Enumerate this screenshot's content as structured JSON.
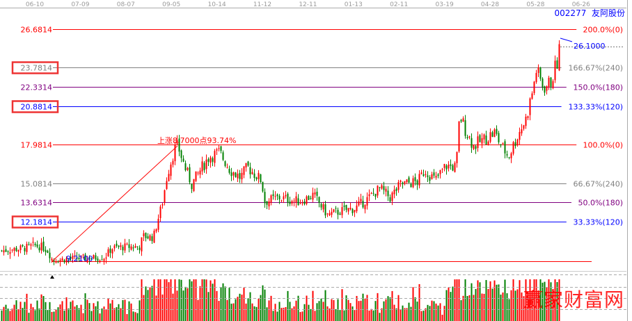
{
  "stock": {
    "code": "002277",
    "name": "友阿股份"
  },
  "watermark": "赢家财富网",
  "colors": {
    "up": "#ff0000",
    "down": "#008000",
    "axis": "#aaaaaa",
    "gray_level": "#808080",
    "purple_level": "#800080",
    "blue_level": "#0000ff",
    "red_level": "#ff0000",
    "highlight_box": "#ee3333"
  },
  "chart_data": {
    "type": "candlestick",
    "x_ticks": [
      "06-10",
      "07-09",
      "08-07",
      "09-05",
      "10-14",
      "11-12",
      "12-11",
      "01-13",
      "02-11",
      "03-19",
      "04-28",
      "05-28",
      "06-26"
    ],
    "ylim": [
      9.21,
      26.6814
    ],
    "levels": [
      {
        "price": "26.6814",
        "label": "200.0%(0)",
        "color": "red"
      },
      {
        "price": "23.7814",
        "label": "166.67%(240)",
        "color": "gray",
        "boxed": true
      },
      {
        "price": "22.3314",
        "label": "150.0%(180)",
        "color": "purple"
      },
      {
        "price": "20.8814",
        "label": "133.33%(120)",
        "color": "blue",
        "boxed": true
      },
      {
        "price": "17.9814",
        "label": "100.0%(0)",
        "color": "red"
      },
      {
        "price": "15.0814",
        "label": "66.67%(240)",
        "color": "gray"
      },
      {
        "price": "13.6314",
        "label": "50.0%(180)",
        "color": "purple"
      },
      {
        "price": "12.1814",
        "label": "33.33%(120)",
        "color": "blue",
        "boxed": true
      }
    ],
    "low_label": "9.2100",
    "high_label": "26.1000",
    "rise_annotation": "上涨8.7000点93.74%",
    "closes": [
      10.0,
      10.2,
      10.4,
      10.3,
      10.0,
      9.3,
      9.4,
      9.45,
      9.5,
      10.2,
      10.3,
      10.3,
      11.1,
      11.0,
      12.1,
      13.4,
      15.8,
      17.6,
      17.9,
      16.3,
      15.0,
      16.3,
      17.1,
      17.4,
      16.1,
      15.5,
      16.3,
      15.3,
      13.7,
      14.0,
      13.7,
      14.2,
      12.7,
      13.0,
      13.2,
      14.0,
      14.7,
      14.0,
      15.0,
      15.2,
      16.1,
      15.3,
      16.4,
      16.3,
      20.2,
      18.9,
      17.9,
      18.4,
      18.9,
      17.9,
      17.1,
      18.9,
      19.9,
      22.1,
      23.6,
      22.3,
      22.6,
      24.2,
      25.7
    ],
    "volume_scale_note_levels": 4
  }
}
